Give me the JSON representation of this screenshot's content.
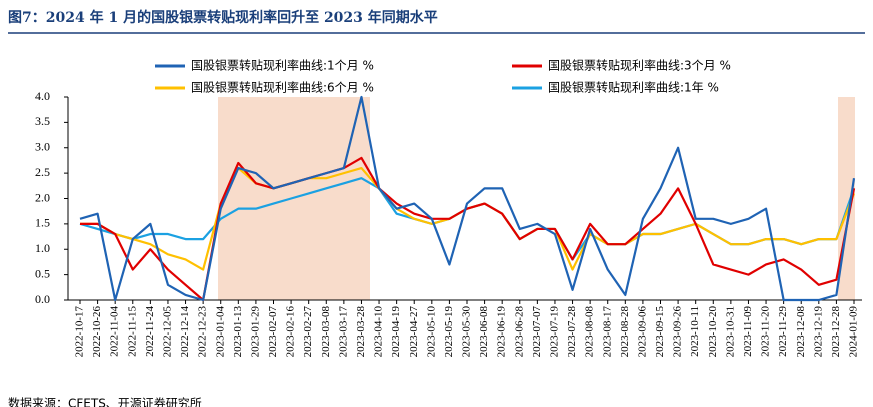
{
  "chart_data": {
    "type": "line",
    "title": "图7：2024 年 1 月的国股银票转贴现利率回升至 2023 年同期水平",
    "source": "数据来源：CFETS、开源证券研究所",
    "categories": [
      "2022-10-17",
      "2022-10-26",
      "2022-11-04",
      "2022-11-15",
      "2022-11-24",
      "2022-12-05",
      "2022-12-14",
      "2022-12-23",
      "2023-01-04",
      "2023-01-13",
      "2023-01-29",
      "2023-02-07",
      "2023-02-16",
      "2023-02-27",
      "2023-03-08",
      "2023-03-17",
      "2023-03-28",
      "2023-04-10",
      "2023-04-19",
      "2023-04-27",
      "2023-05-10",
      "2023-05-19",
      "2023-05-30",
      "2023-06-08",
      "2023-06-19",
      "2023-06-28",
      "2023-07-07",
      "2023-07-19",
      "2023-07-28",
      "2023-08-08",
      "2023-08-17",
      "2023-08-28",
      "2023-09-06",
      "2023-09-15",
      "2023-09-26",
      "2023-10-11",
      "2023-10-20",
      "2023-10-31",
      "2023-11-09",
      "2023-11-20",
      "2023-11-29",
      "2023-12-08",
      "2023-12-19",
      "2023-12-28",
      "2024-01-09"
    ],
    "series": [
      {
        "name": "国股银票转贴现利率曲线:1个月 %",
        "color": "#1f63b4",
        "values": [
          1.6,
          1.7,
          0.0,
          1.2,
          1.5,
          0.3,
          0.1,
          0.0,
          1.8,
          2.6,
          2.5,
          2.2,
          2.3,
          2.4,
          2.5,
          2.6,
          4.0,
          2.2,
          1.8,
          1.9,
          1.6,
          0.7,
          1.9,
          2.2,
          2.2,
          1.4,
          1.5,
          1.3,
          0.2,
          1.4,
          0.6,
          0.1,
          1.6,
          2.2,
          3.0,
          1.6,
          1.6,
          1.5,
          1.6,
          1.8,
          0.0,
          0.0,
          0.0,
          0.1,
          2.4
        ]
      },
      {
        "name": "国股银票转贴现利率曲线:3个月 %",
        "color": "#e00000",
        "values": [
          1.5,
          1.5,
          1.3,
          0.6,
          1.0,
          0.6,
          0.3,
          0.0,
          1.9,
          2.7,
          2.3,
          2.2,
          2.3,
          2.4,
          2.5,
          2.6,
          2.8,
          2.2,
          1.9,
          1.7,
          1.6,
          1.6,
          1.8,
          1.9,
          1.7,
          1.2,
          1.4,
          1.4,
          0.8,
          1.5,
          1.1,
          1.1,
          1.4,
          1.7,
          2.2,
          1.5,
          0.7,
          0.6,
          0.5,
          0.7,
          0.8,
          0.6,
          0.3,
          0.4,
          2.2
        ]
      },
      {
        "name": "国股银票转贴现利率曲线:6个月 %",
        "color": "#ffc000",
        "values": [
          1.5,
          1.5,
          1.3,
          1.2,
          1.1,
          0.9,
          0.8,
          0.6,
          1.9,
          2.6,
          2.3,
          2.2,
          2.3,
          2.4,
          2.4,
          2.5,
          2.6,
          2.2,
          1.8,
          1.6,
          1.5,
          1.6,
          1.8,
          1.9,
          1.7,
          1.2,
          1.4,
          1.4,
          0.6,
          1.3,
          1.1,
          1.1,
          1.3,
          1.3,
          1.4,
          1.5,
          1.3,
          1.1,
          1.1,
          1.2,
          1.2,
          1.1,
          1.2,
          1.2,
          2.1
        ]
      },
      {
        "name": "国股银票转贴现利率曲线:1年 %",
        "color": "#1ba1e2",
        "values": [
          1.5,
          1.4,
          1.3,
          1.2,
          1.3,
          1.3,
          1.2,
          1.2,
          1.6,
          1.8,
          1.8,
          1.9,
          2.0,
          2.1,
          2.2,
          2.3,
          2.4,
          2.2,
          1.7,
          1.6,
          1.5,
          1.6,
          1.8,
          1.9,
          1.7,
          1.2,
          1.4,
          1.4,
          0.8,
          1.3,
          1.1,
          1.1,
          1.3,
          1.3,
          1.4,
          1.5,
          1.3,
          1.1,
          1.1,
          1.2,
          1.2,
          1.1,
          1.2,
          1.2,
          2.2
        ]
      }
    ],
    "ylim": [
      0,
      4
    ],
    "yticks": [
      {
        "value": 0,
        "label": "0.0"
      },
      {
        "value": 0.5,
        "label": "0.5"
      },
      {
        "value": 1,
        "label": "1.0"
      },
      {
        "value": 1.5,
        "label": "1.5"
      },
      {
        "value": 2,
        "label": "2.0"
      },
      {
        "value": 2.5,
        "label": "2.5"
      },
      {
        "value": 3,
        "label": "3.0"
      },
      {
        "value": 3.5,
        "label": "3.5"
      },
      {
        "value": 4,
        "label": "4.0"
      }
    ]
  }
}
